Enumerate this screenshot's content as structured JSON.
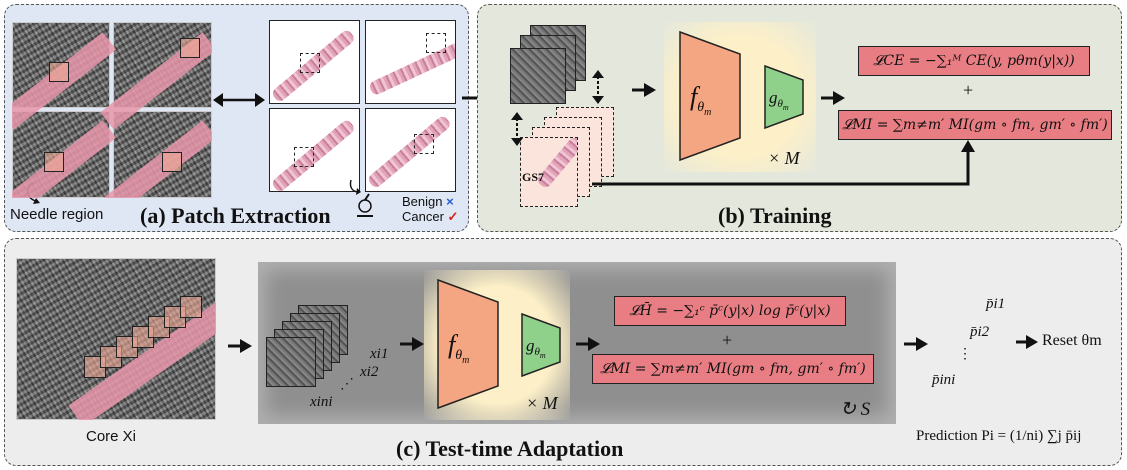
{
  "panel_a": {
    "label": "(a) Patch Extraction",
    "needle_region": "Needle region",
    "benign": "Benign",
    "benign_mark": "×",
    "cancer": "Cancer",
    "cancer_mark": "✓"
  },
  "panel_b": {
    "label": "(b) Training",
    "gs_label": "GS7",
    "f_label": "fθm",
    "g_label": "gθm",
    "times_m": "× M",
    "plus": "+",
    "loss_ce": "𝓛CE = −∑₁ᴹ CE(y, pθm(y|x))",
    "loss_mi": "𝓛MI = ∑m≠m′ MI(gm ∘ fm, gm′ ∘ fm′)"
  },
  "panel_c": {
    "label": "(c) Test-time Adaptation",
    "core_label": "Core Xi",
    "xi1": "xi1",
    "xi2": "xi2",
    "dots": "⋰",
    "xini": "xini",
    "f_label": "fθm",
    "g_label": "gθm",
    "times_m": "× M",
    "plus": "+",
    "loss_h": "𝓛H̄ = −∑₁ᶜ p̄ᶜ(y|x) log p̄ᶜ(y|x)",
    "loss_mi": "𝓛MI = ∑m≠m′ MI(gm ∘ fm, gm′ ∘ fm′)",
    "repeat_s": "↻ S",
    "p_i1": "p̄i1",
    "p_i2": "p̄i2",
    "p_dots": "⋮",
    "p_ini": "p̄ini",
    "reset": "Reset θm",
    "prediction": "Prediction Pi = (1/ni) ∑j p̄ij"
  },
  "colors": {
    "panel_a_bg": "#dfe6f4",
    "panel_b_bg": "#e4e8dc",
    "panel_c_bg": "#ededed",
    "encoder": "#f4a582",
    "head": "#8fd18a",
    "glow": "#fdf0c8",
    "loss_box": "#e87e84",
    "inner_gray": "#8f8f8f"
  }
}
